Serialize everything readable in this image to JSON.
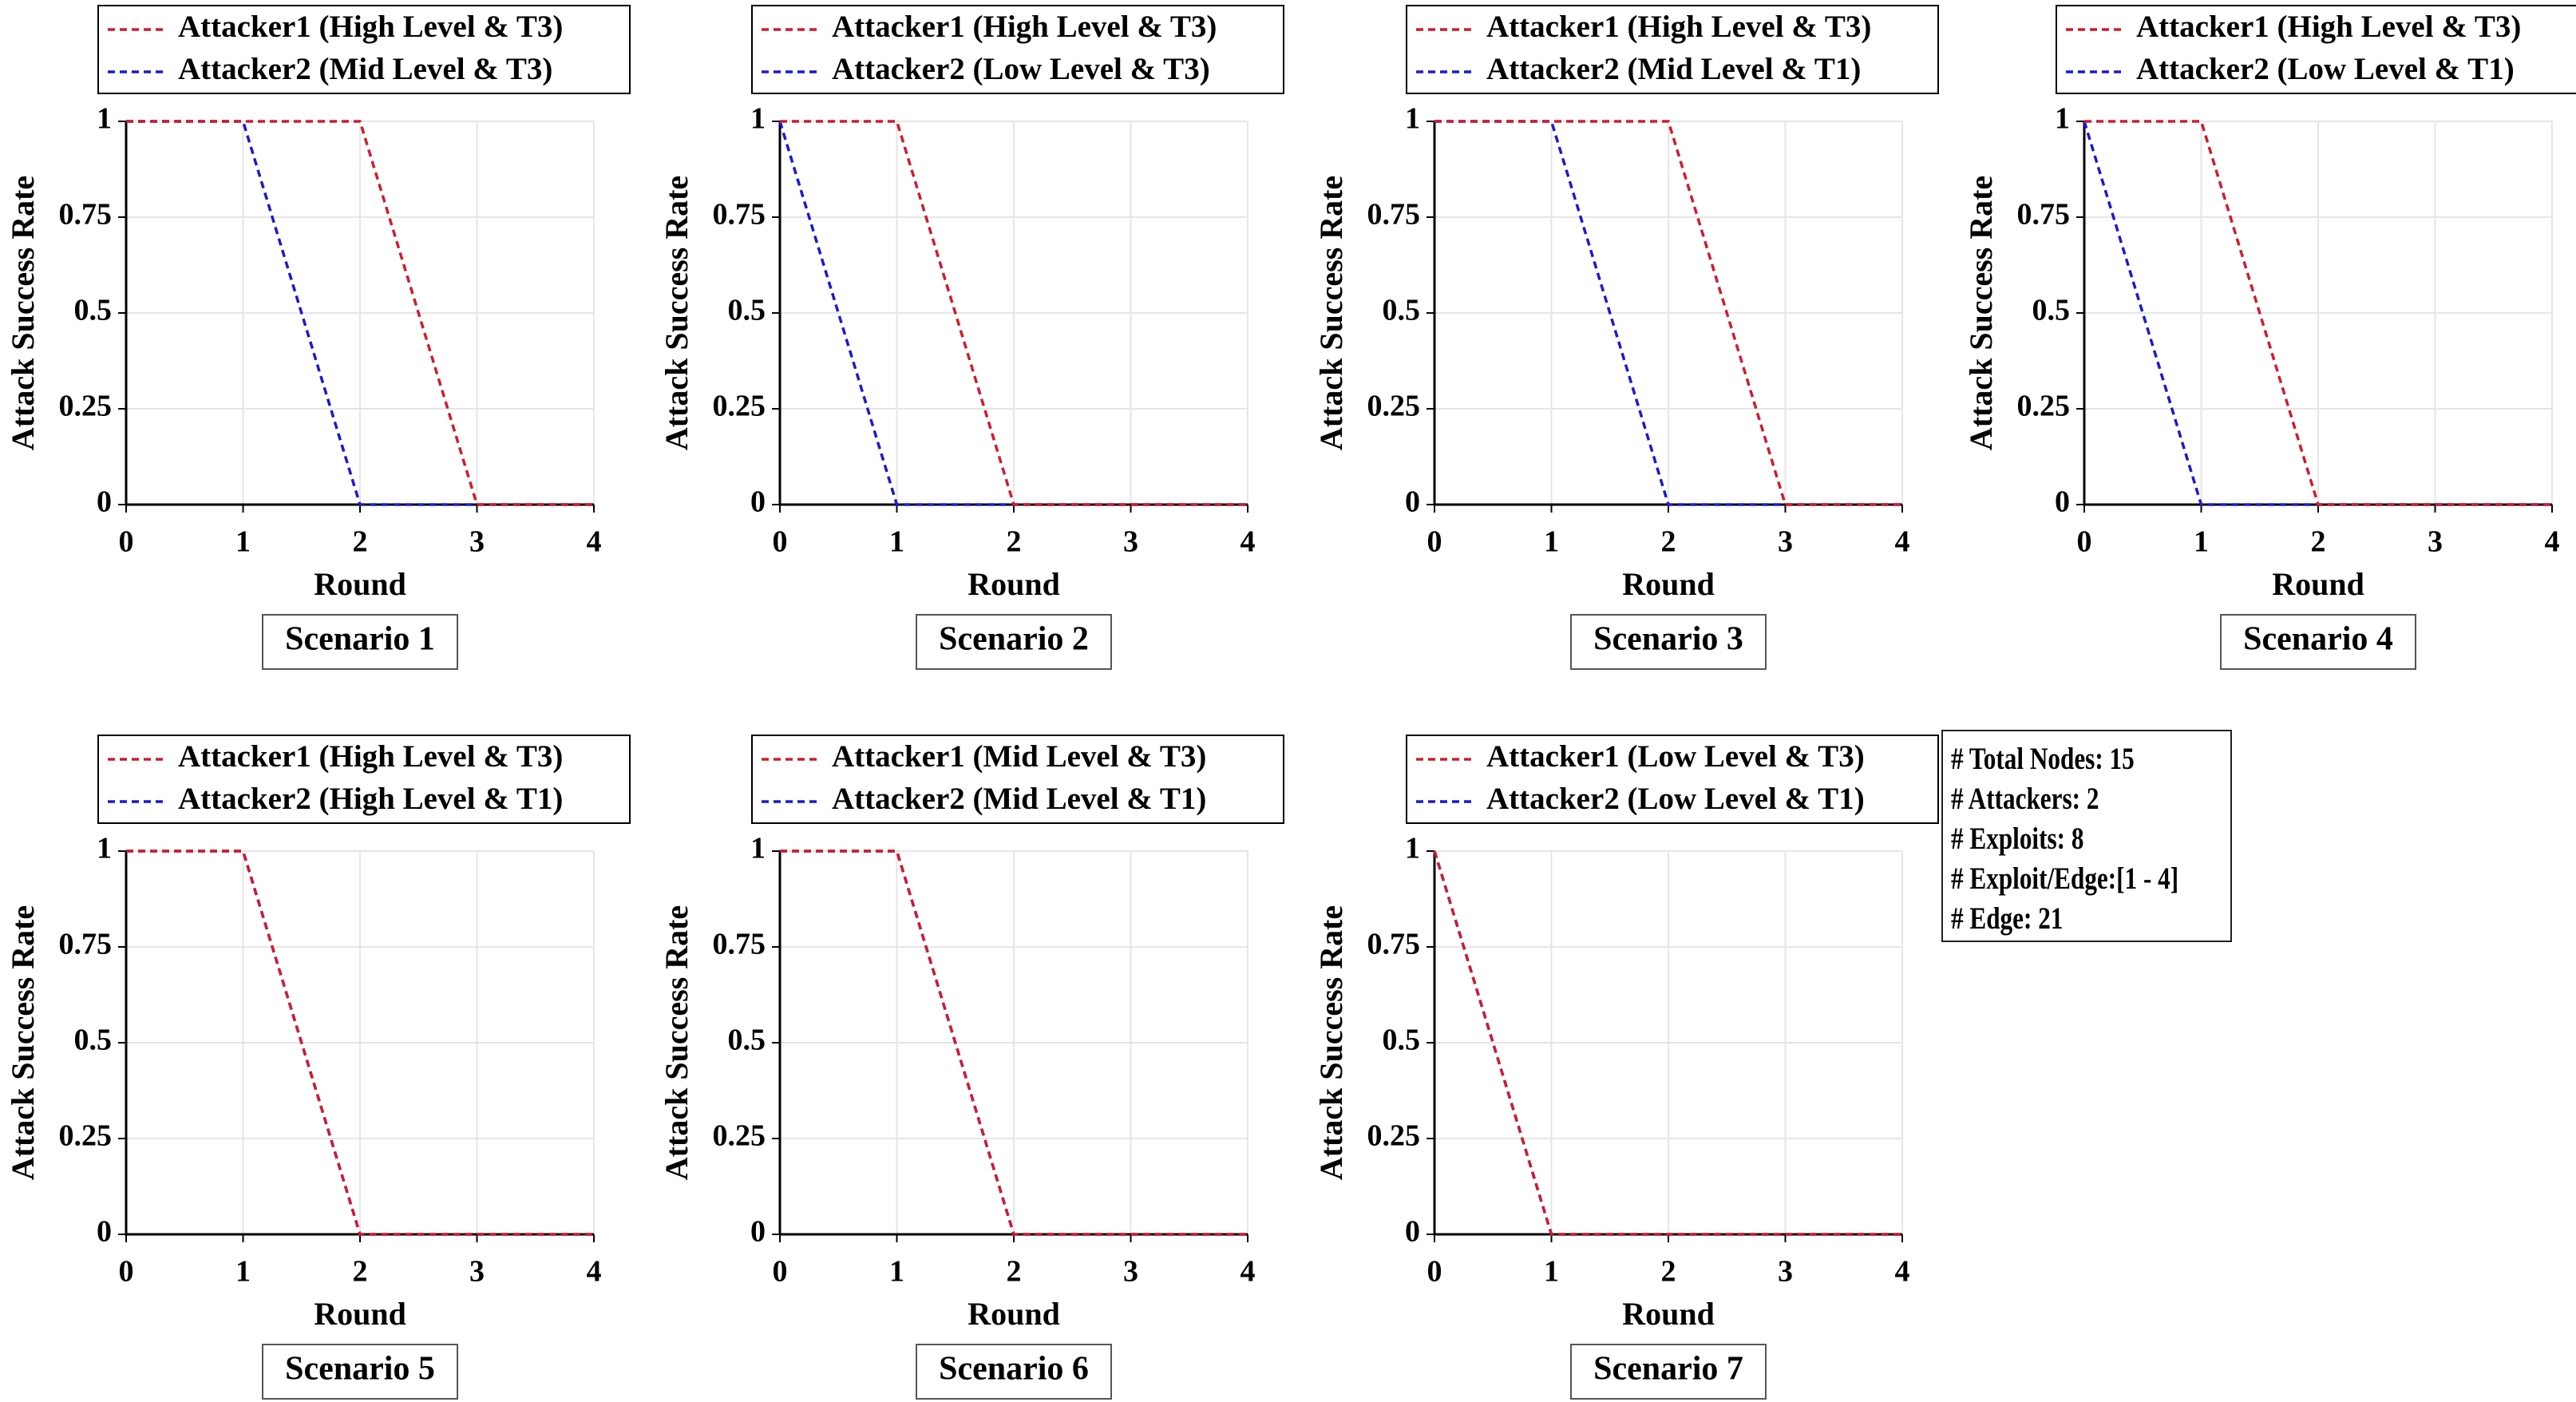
{
  "figure_info": {
    "lines": [
      "# Total Nodes: 15",
      "# Attackers: 2",
      "# Exploits: 8",
      "# Exploit/Edge:[1 - 4]",
      "# Edge: 21"
    ]
  },
  "colors": {
    "attacker1": "#d01c2c",
    "attacker2": "#1a1ad0",
    "grid": "#e6e6e6",
    "axis": "#000000"
  },
  "chart_data": [
    {
      "type": "line",
      "title": "Scenario 1",
      "xlabel": "Round",
      "ylabel": "Attack Success Rate",
      "xlim": [
        0,
        4
      ],
      "ylim": [
        0,
        1
      ],
      "grid": true,
      "x_ticks": [
        "0",
        "1",
        "2",
        "3",
        "4"
      ],
      "y_ticks": [
        "0",
        "0.25",
        "0.5",
        "0.75",
        "1"
      ],
      "x": [
        0,
        1,
        2,
        3,
        4
      ],
      "series": [
        {
          "name": "Attacker1 (High Level & T3)",
          "values": [
            1,
            1,
            1,
            0,
            0
          ]
        },
        {
          "name": "Attacker2 (Mid Level & T3)",
          "values": [
            1,
            1,
            0,
            0,
            0
          ]
        }
      ]
    },
    {
      "type": "line",
      "title": "Scenario 2",
      "xlabel": "Round",
      "ylabel": "Attack Success Rate",
      "xlim": [
        0,
        4
      ],
      "ylim": [
        0,
        1
      ],
      "grid": true,
      "x_ticks": [
        "0",
        "1",
        "2",
        "3",
        "4"
      ],
      "y_ticks": [
        "0",
        "0.25",
        "0.5",
        "0.75",
        "1"
      ],
      "x": [
        0,
        1,
        2,
        3,
        4
      ],
      "series": [
        {
          "name": "Attacker1 (High Level & T3)",
          "values": [
            1,
            1,
            0,
            0,
            0
          ]
        },
        {
          "name": "Attacker2 (Low Level & T3)",
          "values": [
            1,
            0,
            0,
            0,
            0
          ]
        }
      ]
    },
    {
      "type": "line",
      "title": "Scenario 3",
      "xlabel": "Round",
      "ylabel": "Attack Success Rate",
      "xlim": [
        0,
        4
      ],
      "ylim": [
        0,
        1
      ],
      "grid": true,
      "x_ticks": [
        "0",
        "1",
        "2",
        "3",
        "4"
      ],
      "y_ticks": [
        "0",
        "0.25",
        "0.5",
        "0.75",
        "1"
      ],
      "x": [
        0,
        1,
        2,
        3,
        4
      ],
      "series": [
        {
          "name": "Attacker1 (High Level & T3)",
          "values": [
            1,
            1,
            1,
            0,
            0
          ]
        },
        {
          "name": "Attacker2 (Mid Level & T1)",
          "values": [
            1,
            1,
            0,
            0,
            0
          ]
        }
      ]
    },
    {
      "type": "line",
      "title": "Scenario 4",
      "xlabel": "Round",
      "ylabel": "Attack Success Rate",
      "xlim": [
        0,
        4
      ],
      "ylim": [
        0,
        1
      ],
      "grid": true,
      "x_ticks": [
        "0",
        "1",
        "2",
        "3",
        "4"
      ],
      "y_ticks": [
        "0",
        "0.25",
        "0.5",
        "0.75",
        "1"
      ],
      "x": [
        0,
        1,
        2,
        3,
        4
      ],
      "series": [
        {
          "name": "Attacker1 (High Level & T3)",
          "values": [
            1,
            1,
            0,
            0,
            0
          ]
        },
        {
          "name": "Attacker2 (Low Level & T1)",
          "values": [
            1,
            0,
            0,
            0,
            0
          ]
        }
      ]
    },
    {
      "type": "line",
      "title": "Scenario 5",
      "xlabel": "Round",
      "ylabel": "Attack Success Rate",
      "xlim": [
        0,
        4
      ],
      "ylim": [
        0,
        1
      ],
      "grid": true,
      "x_ticks": [
        "0",
        "1",
        "2",
        "3",
        "4"
      ],
      "y_ticks": [
        "0",
        "0.25",
        "0.5",
        "0.75",
        "1"
      ],
      "x": [
        0,
        1,
        2,
        3,
        4
      ],
      "series": [
        {
          "name": "Attacker1 (High Level & T3)",
          "values": [
            1,
            1,
            0,
            0,
            0
          ]
        },
        {
          "name": "Attacker2 (High Level & T1)",
          "values": [
            1,
            1,
            0,
            0,
            0
          ]
        }
      ]
    },
    {
      "type": "line",
      "title": "Scenario 6",
      "xlabel": "Round",
      "ylabel": "Attack Success Rate",
      "xlim": [
        0,
        4
      ],
      "ylim": [
        0,
        1
      ],
      "grid": true,
      "x_ticks": [
        "0",
        "1",
        "2",
        "3",
        "4"
      ],
      "y_ticks": [
        "0",
        "0.25",
        "0.5",
        "0.75",
        "1"
      ],
      "x": [
        0,
        1,
        2,
        3,
        4
      ],
      "series": [
        {
          "name": "Attacker1 (Mid Level & T3)",
          "values": [
            1,
            1,
            0,
            0,
            0
          ]
        },
        {
          "name": "Attacker2 (Mid Level & T1)",
          "values": [
            1,
            1,
            0,
            0,
            0
          ]
        }
      ]
    },
    {
      "type": "line",
      "title": "Scenario 7",
      "xlabel": "Round",
      "ylabel": "Attack Success Rate",
      "xlim": [
        0,
        4
      ],
      "ylim": [
        0,
        1
      ],
      "grid": true,
      "x_ticks": [
        "0",
        "1",
        "2",
        "3",
        "4"
      ],
      "y_ticks": [
        "0",
        "0.25",
        "0.5",
        "0.75",
        "1"
      ],
      "x": [
        0,
        1,
        2,
        3,
        4
      ],
      "series": [
        {
          "name": "Attacker1 (Low Level & T3)",
          "values": [
            1,
            0,
            0,
            0,
            0
          ]
        },
        {
          "name": "Attacker2 (Low Level & T1)",
          "values": [
            1,
            0,
            0,
            0,
            0
          ]
        }
      ]
    }
  ]
}
